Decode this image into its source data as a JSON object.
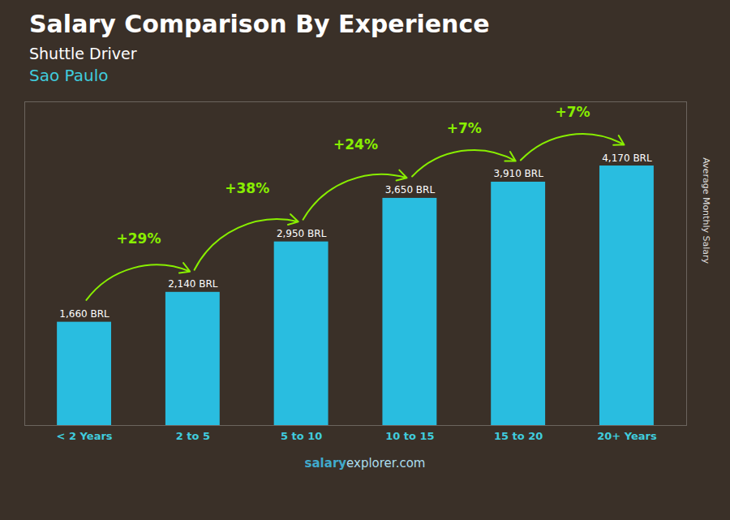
{
  "chart_data": {
    "type": "bar",
    "title": "Salary Comparison By Experience",
    "subtitle": "Shuttle Driver",
    "city": "Sao Paulo",
    "y_label": "Average Monthly Salary",
    "categories": [
      "< 2 Years",
      "2 to 5",
      "5 to 10",
      "10 to 15",
      "15 to 20",
      "20+ Years"
    ],
    "values": [
      1660,
      2140,
      2950,
      3650,
      3910,
      4170
    ],
    "value_labels": [
      "1,660 BRL",
      "2,140 BRL",
      "2,950 BRL",
      "3,650 BRL",
      "3,910 BRL",
      "4,170 BRL"
    ],
    "data_labels": true,
    "color": "#29bde0",
    "ylim": [
      0,
      5200
    ],
    "tick_labels": "x",
    "grid": false,
    "annotations": [
      "+29%",
      "+38%",
      "+24%",
      "+7%",
      "+7%"
    ],
    "footer": [
      "salary",
      "explorer.com"
    ]
  }
}
